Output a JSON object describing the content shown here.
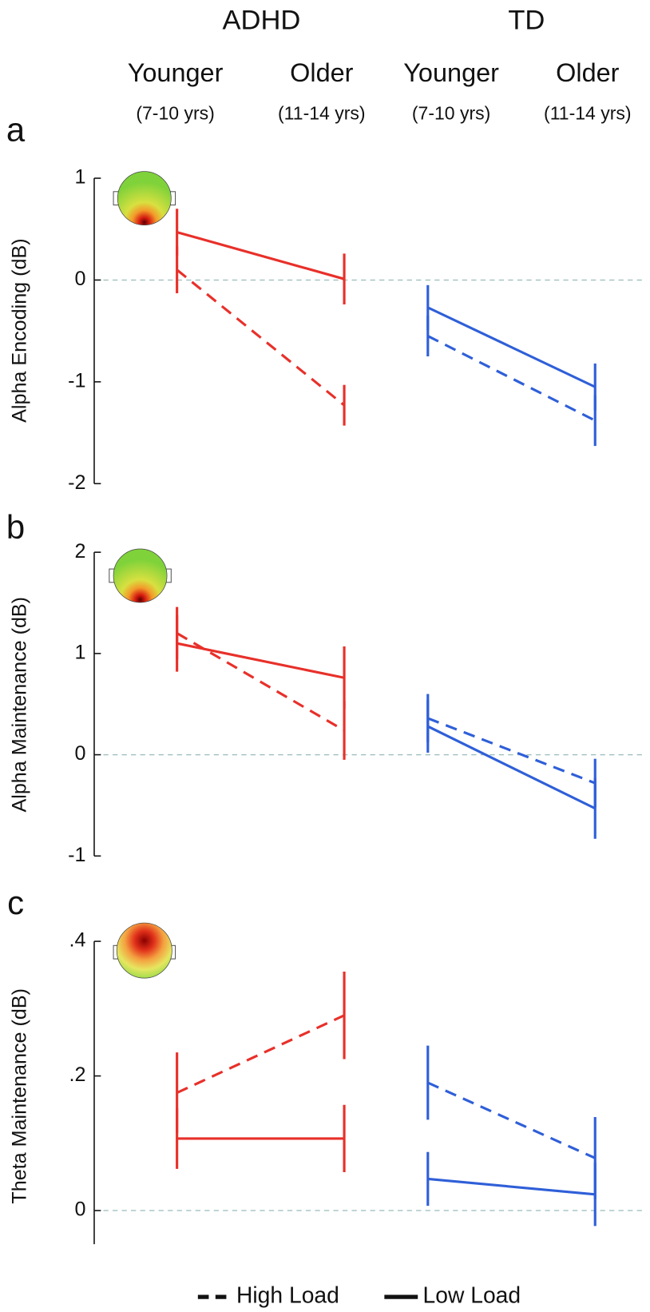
{
  "header": {
    "groups": [
      "ADHD",
      "TD"
    ],
    "categories": [
      "Younger",
      "Older",
      "Younger",
      "Older"
    ],
    "ages": [
      "(7-10 yrs)",
      "(11-14 yrs)",
      "(7-10 yrs)",
      "(11-14 yrs)"
    ]
  },
  "legend": [
    {
      "label": "High Load",
      "style": "dashed"
    },
    {
      "label": "Low Load",
      "style": "solid"
    }
  ],
  "chart_data": [
    {
      "type": "line",
      "panel": "a",
      "ylabel": "Alpha Encoding  (dB)",
      "ylim": [
        -2,
        1
      ],
      "yticks": [
        -2,
        -1,
        0,
        1
      ],
      "series": [
        {
          "color": "#e8302a",
          "style": "dashed",
          "values": [
            0.1,
            -1.23,
            null,
            null
          ],
          "errors": [
            0.23,
            0.2,
            null,
            null
          ]
        },
        {
          "color": "#e8302a",
          "style": "solid",
          "values": [
            0.47,
            0.01,
            null,
            null
          ],
          "errors": [
            0.23,
            0.25,
            null,
            null
          ]
        },
        {
          "color": "#2f5fd8",
          "style": "dashed",
          "values": [
            null,
            null,
            -0.55,
            -1.38
          ],
          "errors": [
            null,
            null,
            0.2,
            0.25
          ]
        },
        {
          "color": "#2f5fd8",
          "style": "solid",
          "values": [
            null,
            null,
            -0.27,
            -1.05
          ],
          "errors": [
            null,
            null,
            0.22,
            0.23
          ]
        }
      ]
    },
    {
      "type": "line",
      "panel": "b",
      "ylabel": "Alpha Maintenance (dB)",
      "ylim": [
        -1,
        2
      ],
      "yticks": [
        -1,
        0,
        1,
        2
      ],
      "series": [
        {
          "color": "#e8302a",
          "style": "dashed",
          "values": [
            1.2,
            0.24,
            null,
            null
          ],
          "errors": [
            0.26,
            0.29,
            null,
            null
          ]
        },
        {
          "color": "#e8302a",
          "style": "solid",
          "values": [
            1.1,
            0.76,
            null,
            null
          ],
          "errors": [
            0.28,
            0.31,
            null,
            null
          ]
        },
        {
          "color": "#2f5fd8",
          "style": "dashed",
          "values": [
            null,
            null,
            0.36,
            -0.28
          ],
          "errors": [
            null,
            null,
            0.24,
            0.24
          ]
        },
        {
          "color": "#2f5fd8",
          "style": "solid",
          "values": [
            null,
            null,
            0.28,
            -0.53
          ],
          "errors": [
            null,
            null,
            0.26,
            0.3
          ]
        }
      ]
    },
    {
      "type": "line",
      "panel": "c",
      "ylabel": "Theta Maintenance (dB)",
      "ylim": [
        -0.05,
        0.4
      ],
      "yticks": [
        0,
        {
          "value": 0.2,
          "label": ".2"
        },
        {
          "value": 0.4,
          "label": ".4"
        }
      ],
      "series": [
        {
          "color": "#e8302a",
          "style": "dashed",
          "values": [
            0.175,
            0.29,
            null,
            null
          ],
          "errors": [
            0.06,
            0.065,
            null,
            null
          ]
        },
        {
          "color": "#e8302a",
          "style": "solid",
          "values": [
            0.107,
            0.107,
            null,
            null
          ],
          "errors": [
            0.045,
            0.05,
            null,
            null
          ]
        },
        {
          "color": "#2f5fd8",
          "style": "dashed",
          "values": [
            null,
            null,
            0.19,
            0.078
          ],
          "errors": [
            null,
            null,
            0.055,
            0.061
          ]
        },
        {
          "color": "#2f5fd8",
          "style": "solid",
          "values": [
            null,
            null,
            0.047,
            0.024
          ],
          "errors": [
            null,
            null,
            0.04,
            0.047
          ]
        }
      ]
    }
  ]
}
